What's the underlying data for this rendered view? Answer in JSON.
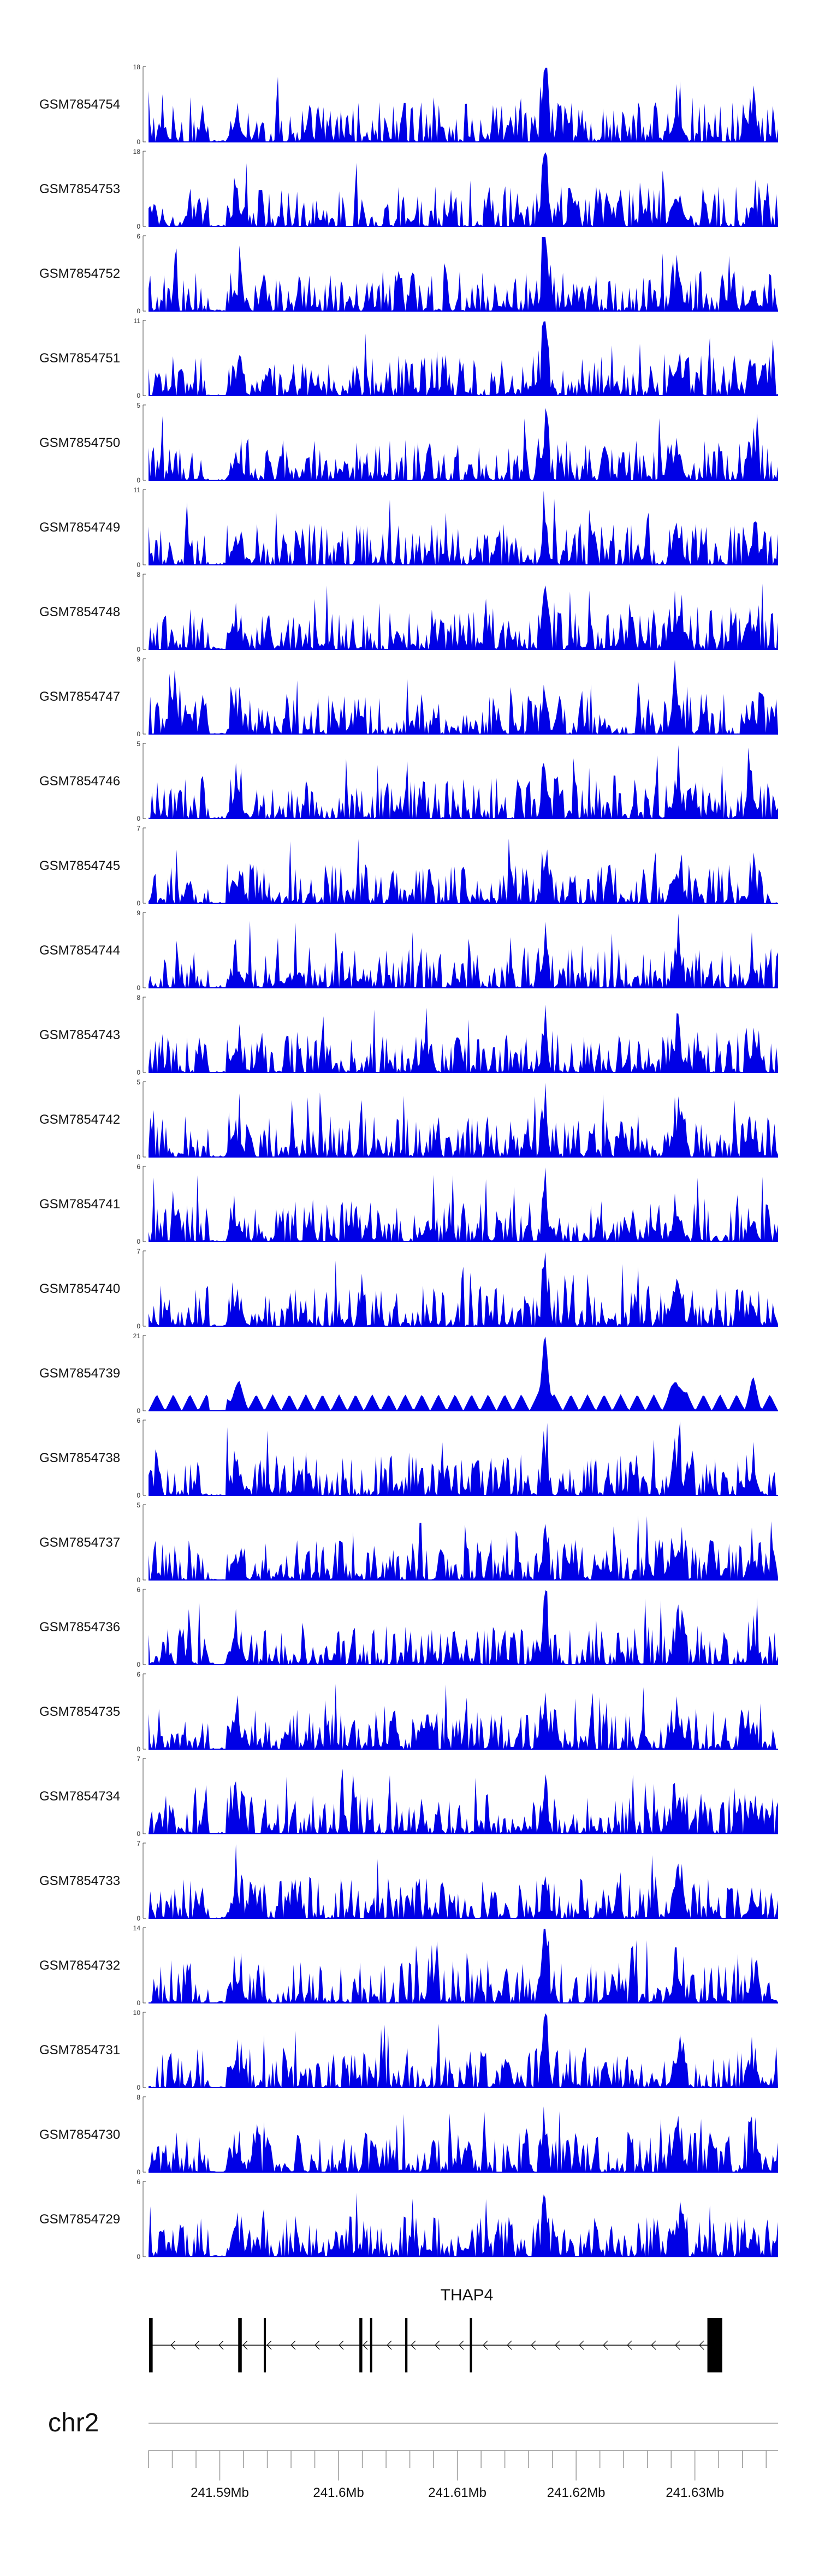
{
  "chart_data": {
    "type": "area",
    "color": "#0000e6",
    "x_range": [
      241584000,
      241637000
    ],
    "tracks": [
      {
        "name": "GSM7854754",
        "ymax": "18",
        "ymin": "0"
      },
      {
        "name": "GSM7854753",
        "ymax": "18",
        "ymin": "0"
      },
      {
        "name": "GSM7854752",
        "ymax": "6",
        "ymin": "0"
      },
      {
        "name": "GSM7854751",
        "ymax": "11",
        "ymin": "0"
      },
      {
        "name": "GSM7854750",
        "ymax": "5",
        "ymin": "0"
      },
      {
        "name": "GSM7854749",
        "ymax": "11",
        "ymin": "0"
      },
      {
        "name": "GSM7854748",
        "ymax": "8",
        "ymin": "0"
      },
      {
        "name": "GSM7854747",
        "ymax": "9",
        "ymin": "0"
      },
      {
        "name": "GSM7854746",
        "ymax": "5",
        "ymin": "0"
      },
      {
        "name": "GSM7854745",
        "ymax": "7",
        "ymin": "0"
      },
      {
        "name": "GSM7854744",
        "ymax": "9",
        "ymin": "0"
      },
      {
        "name": "GSM7854743",
        "ymax": "8",
        "ymin": "0"
      },
      {
        "name": "GSM7854742",
        "ymax": "5",
        "ymin": "0"
      },
      {
        "name": "GSM7854741",
        "ymax": "6",
        "ymin": "0"
      },
      {
        "name": "GSM7854740",
        "ymax": "7",
        "ymin": "0"
      },
      {
        "name": "GSM7854739",
        "ymax": "21",
        "ymin": "0"
      },
      {
        "name": "GSM7854738",
        "ymax": "6",
        "ymin": "0"
      },
      {
        "name": "GSM7854737",
        "ymax": "5",
        "ymin": "0"
      },
      {
        "name": "GSM7854736",
        "ymax": "6",
        "ymin": "0"
      },
      {
        "name": "GSM7854735",
        "ymax": "6",
        "ymin": "0"
      },
      {
        "name": "GSM7854734",
        "ymax": "7",
        "ymin": "0"
      },
      {
        "name": "GSM7854733",
        "ymax": "7",
        "ymin": "0"
      },
      {
        "name": "GSM7854732",
        "ymax": "14",
        "ymin": "0"
      },
      {
        "name": "GSM7854731",
        "ymax": "10",
        "ymin": "0"
      },
      {
        "name": "GSM7854730",
        "ymax": "8",
        "ymin": "0"
      },
      {
        "name": "GSM7854729",
        "ymax": "6",
        "ymin": "0"
      }
    ],
    "gene": {
      "name": "THAP4",
      "strand": "-",
      "exons": [
        [
          241584050,
          241584350
        ],
        [
          241591550,
          241591850
        ],
        [
          241593700,
          241593850
        ],
        [
          241601750,
          241602000
        ],
        [
          241602650,
          241602800
        ],
        [
          241605600,
          241605800
        ],
        [
          241611050,
          241611150
        ],
        [
          241631050,
          241632300
        ]
      ]
    },
    "chromosome": "chr2",
    "axis": {
      "ticks": [
        241590000,
        241600000,
        241610000,
        241620000,
        241630000
      ],
      "tick_labels": [
        "241.59Mb",
        "241.6Mb",
        "241.61Mb",
        "241.62Mb",
        "241.63Mb"
      ],
      "minor_step": 2000
    }
  }
}
